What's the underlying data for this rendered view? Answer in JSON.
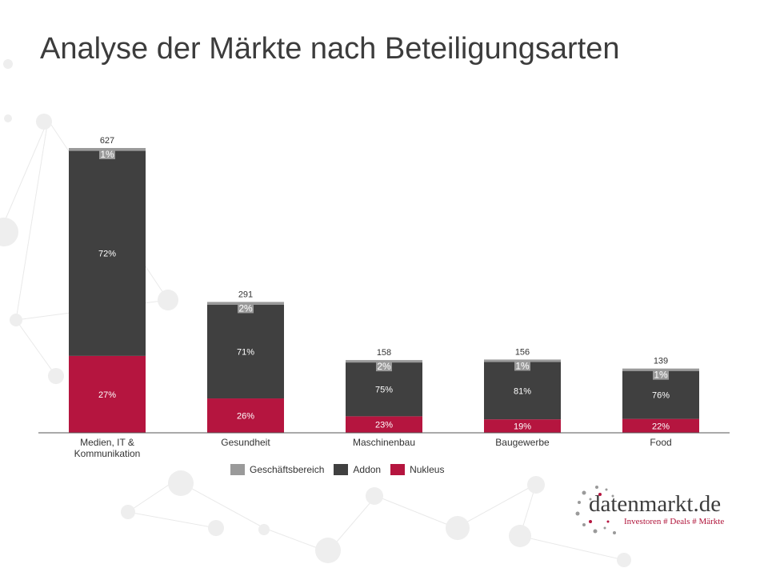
{
  "title": "Analyse der Märkte nach Beteiligungsarten",
  "chart_data": {
    "type": "bar",
    "stacked": true,
    "categories": [
      "Medien, IT & Kommunikation",
      "Gesundheit",
      "Maschinenbau",
      "Baugewerbe",
      "Food"
    ],
    "totals": [
      627,
      291,
      158,
      156,
      139
    ],
    "series": [
      {
        "name": "Nukleus",
        "color": "#b5153f",
        "percent": [
          27,
          26,
          23,
          19,
          22
        ],
        "labels": [
          "27%",
          "26%",
          "23%",
          "19%",
          "22%"
        ]
      },
      {
        "name": "Addon",
        "color": "#404040",
        "percent": [
          72,
          71,
          75,
          81,
          76
        ],
        "labels": [
          "72%",
          "71%",
          "75%",
          "81%",
          "76%"
        ]
      },
      {
        "name": "Geschäftsbereich",
        "color": "#9a9a9a",
        "percent": [
          1,
          2,
          2,
          1,
          1
        ],
        "labels": [
          "1%",
          "2%",
          "2%",
          "1%",
          "1%"
        ]
      }
    ],
    "ylim": [
      0,
      660
    ],
    "grid": false,
    "legend_position": "bottom",
    "legend_order": [
      "Geschäftsbereich",
      "Addon",
      "Nukleus"
    ]
  },
  "legend": {
    "item1": "Geschäftsbereich",
    "item2": "Addon",
    "item3": "Nukleus"
  },
  "logo": {
    "name": "datenmarkt.de",
    "tagline": "Investoren # Deals # Märkte"
  },
  "colors": {
    "nukleus": "#b5153f",
    "addon": "#404040",
    "geschaeftsbereich": "#9a9a9a",
    "title": "#3c3c3c"
  }
}
